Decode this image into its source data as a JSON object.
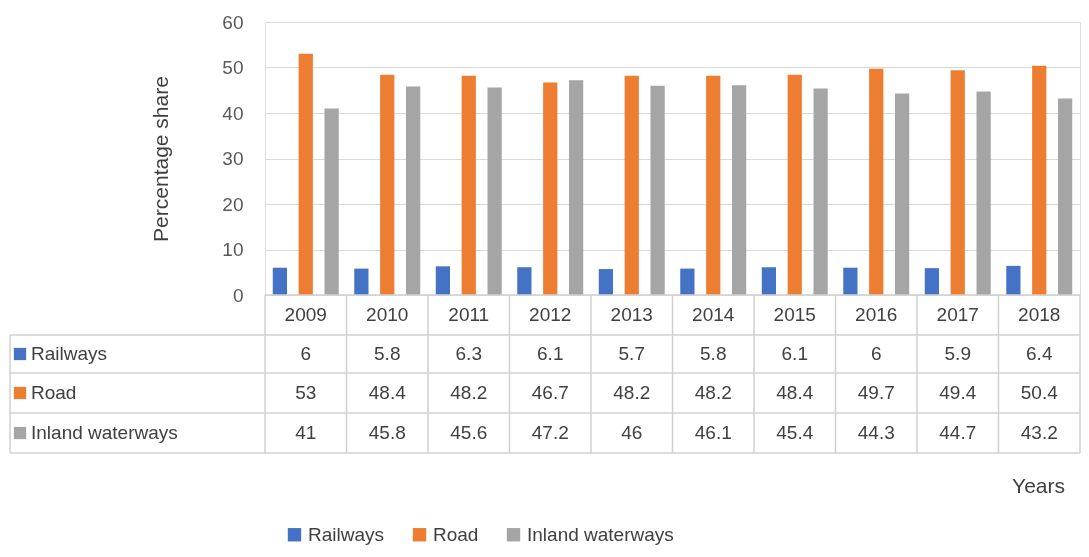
{
  "chart_data": {
    "type": "bar",
    "annotations": [
      "Years"
    ],
    "ylabel": "Percentage share",
    "categories": [
      "2009",
      "2010",
      "2011",
      "2012",
      "2013",
      "2014",
      "2015",
      "2016",
      "2017",
      "2018"
    ],
    "series": [
      {
        "name": "Railways",
        "color": "#4472c4",
        "values": [
          6,
          5.8,
          6.3,
          6.1,
          5.7,
          5.8,
          6.1,
          6,
          5.9,
          6.4
        ]
      },
      {
        "name": "Road",
        "color": "#ed7d31",
        "values": [
          53,
          48.4,
          48.2,
          46.7,
          48.2,
          48.2,
          48.4,
          49.7,
          49.4,
          50.4
        ]
      },
      {
        "name": "Inland waterways",
        "color": "#a5a5a5",
        "values": [
          41,
          45.8,
          45.6,
          47.2,
          46,
          46.1,
          45.4,
          44.3,
          44.7,
          43.2
        ]
      }
    ],
    "ylim": [
      0,
      60
    ],
    "yticks": [
      0,
      10,
      20,
      30,
      40,
      50,
      60
    ],
    "grid": "y",
    "legend": "bottom",
    "data_labels": true
  }
}
